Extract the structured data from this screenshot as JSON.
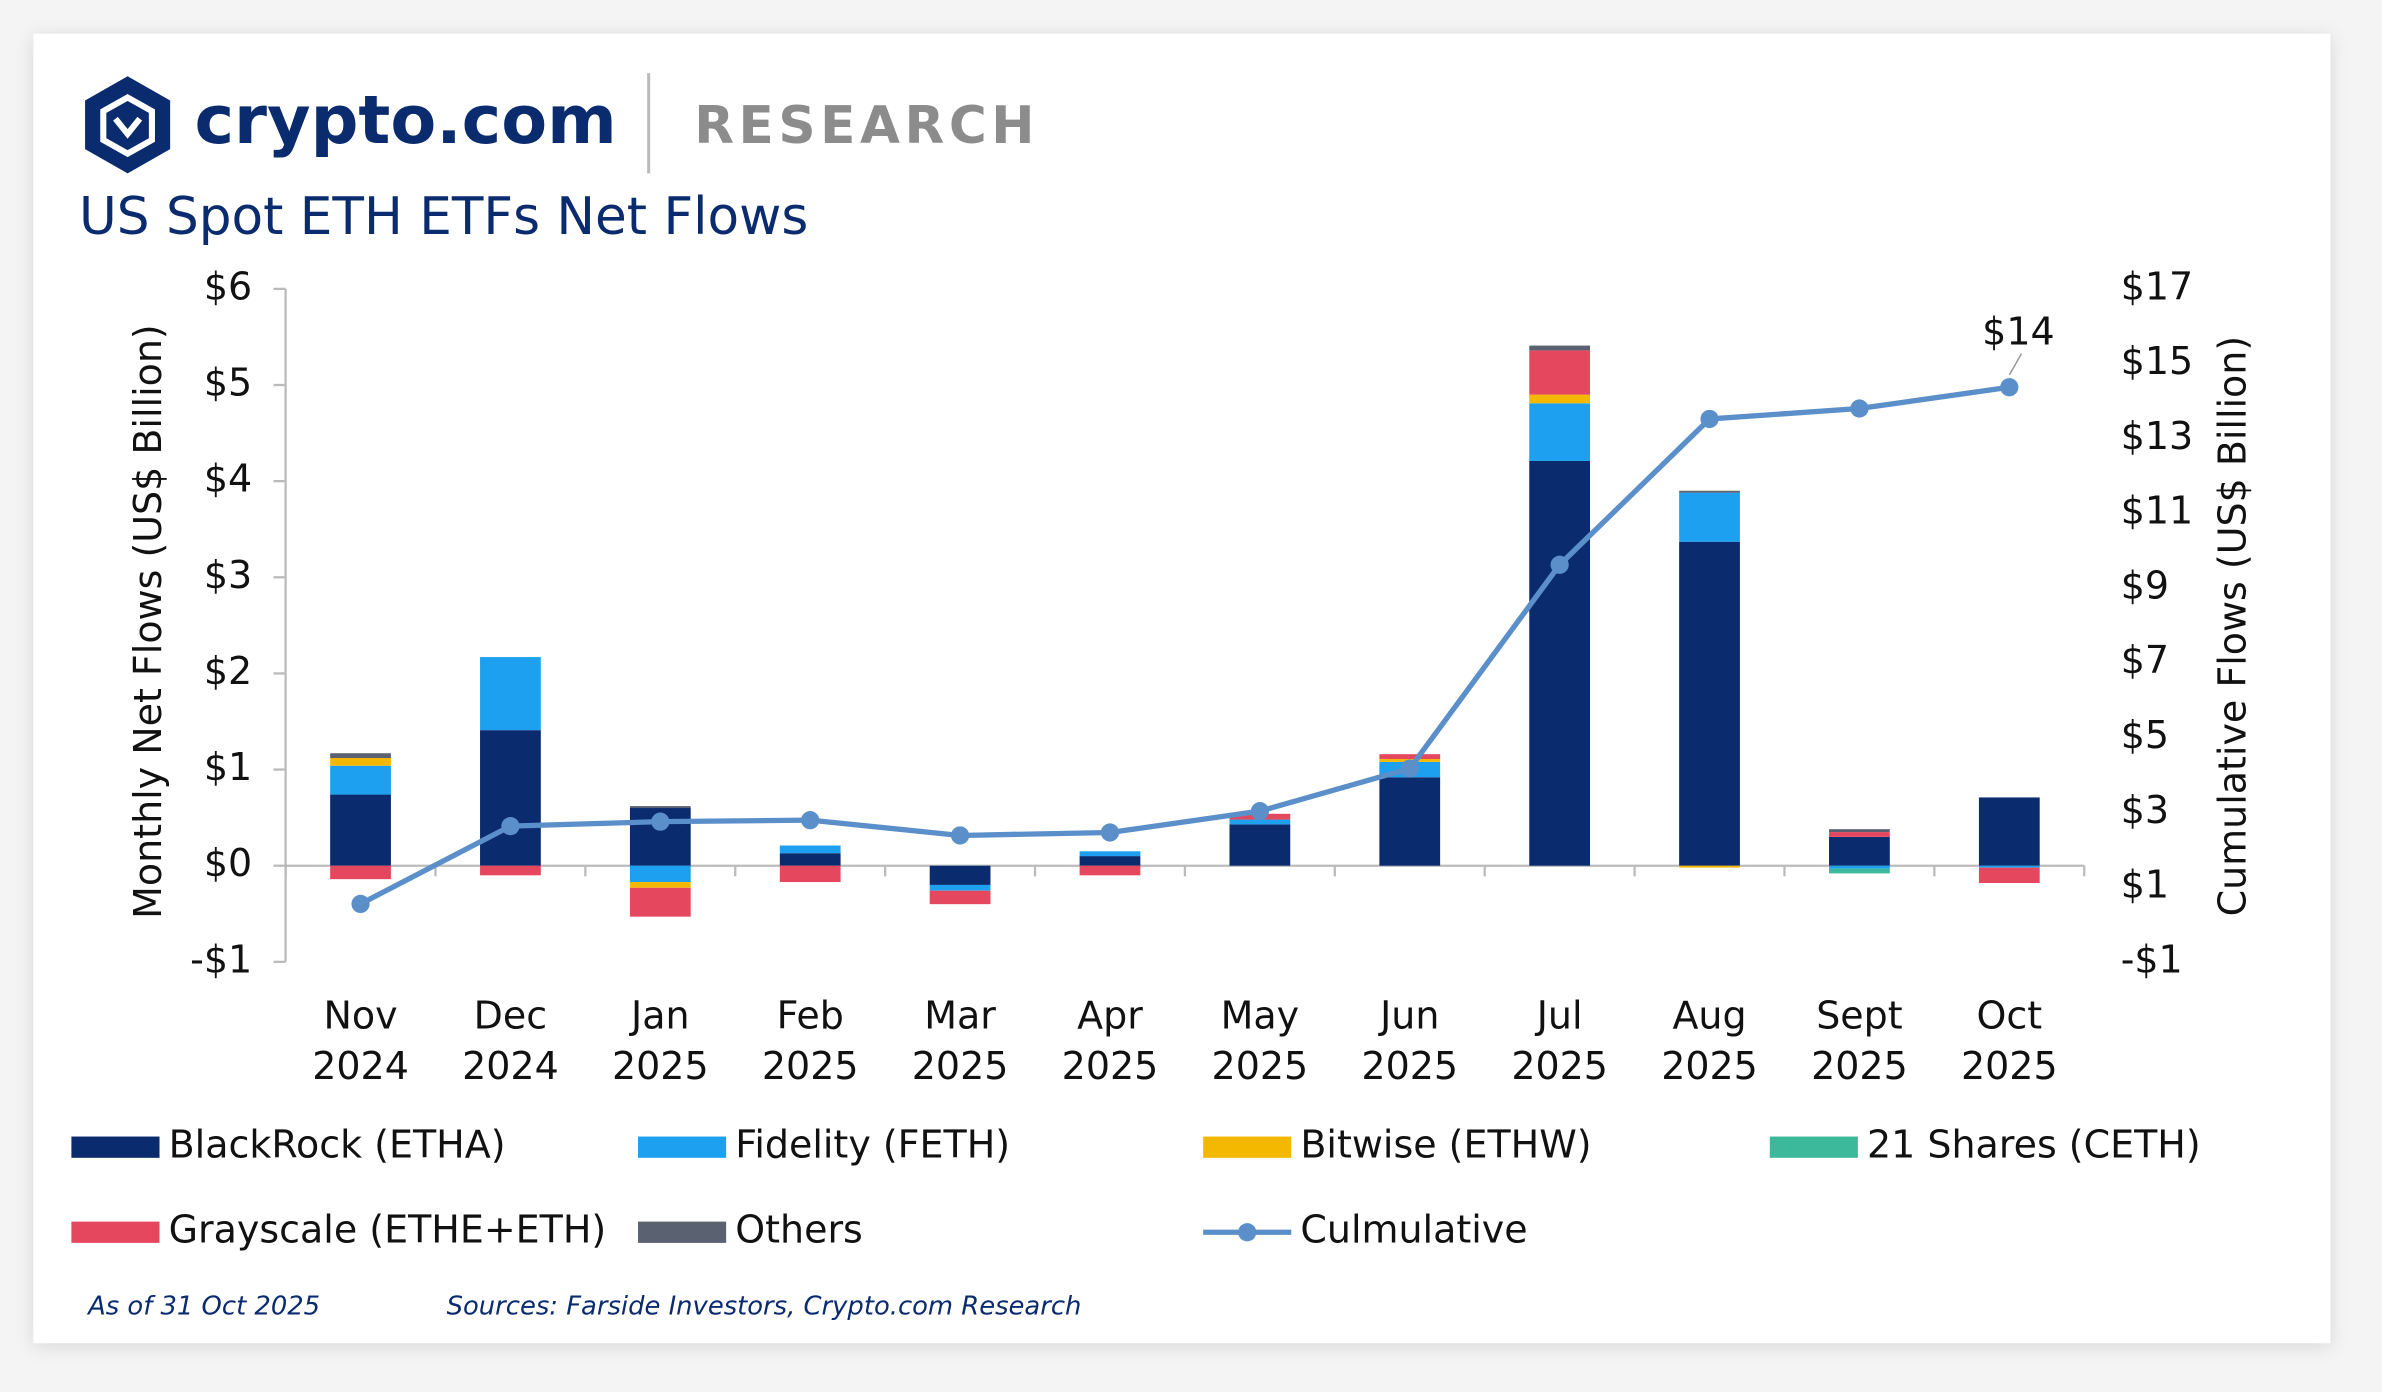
{
  "header": {
    "brand": "crypto.com",
    "section": "RESEARCH"
  },
  "chart_data": {
    "type": "bar",
    "title": "US Spot ETH ETFs Net Flows",
    "y_label": "Monthly Net Flows (US$ Billion)",
    "y2_label": "Cumulative Flows (US$ Billion)",
    "categories": [
      [
        "Nov",
        "2024"
      ],
      [
        "Dec",
        "2024"
      ],
      [
        "Jan",
        "2025"
      ],
      [
        "Feb",
        "2025"
      ],
      [
        "Mar",
        "2025"
      ],
      [
        "Apr",
        "2025"
      ],
      [
        "May",
        "2025"
      ],
      [
        "Jun",
        "2025"
      ],
      [
        "Jul",
        "2025"
      ],
      [
        "Aug",
        "2025"
      ],
      [
        "Sept",
        "2025"
      ],
      [
        "Oct",
        "2025"
      ]
    ],
    "ylim": [
      -1,
      6
    ],
    "yticks": [
      {
        "value": -1,
        "label": "-$1"
      },
      {
        "value": 0,
        "label": "$0"
      },
      {
        "value": 1,
        "label": "$1"
      },
      {
        "value": 2,
        "label": "$2"
      },
      {
        "value": 3,
        "label": "$3"
      },
      {
        "value": 4,
        "label": "$4"
      },
      {
        "value": 5,
        "label": "$5"
      },
      {
        "value": 6,
        "label": "$6"
      }
    ],
    "y2lim": [
      -1,
      17
    ],
    "y2ticks": [
      {
        "value": -1,
        "label": "-$1"
      },
      {
        "value": 1,
        "label": "$1"
      },
      {
        "value": 3,
        "label": "$3"
      },
      {
        "value": 5,
        "label": "$5"
      },
      {
        "value": 7,
        "label": "$7"
      },
      {
        "value": 9,
        "label": "$9"
      },
      {
        "value": 11,
        "label": "$11"
      },
      {
        "value": 13,
        "label": "$13"
      },
      {
        "value": 15,
        "label": "$15"
      },
      {
        "value": 17,
        "label": "$17"
      }
    ],
    "series": [
      {
        "name": "BlackRock (ETHA)",
        "color": "#0b2b6f",
        "values": [
          0.74,
          1.41,
          0.6,
          0.13,
          -0.2,
          0.1,
          0.43,
          0.92,
          4.21,
          3.37,
          0.3,
          0.71
        ]
      },
      {
        "name": "Fidelity (FETH)",
        "color": "#1ea0f0",
        "values": [
          0.3,
          0.76,
          -0.17,
          0.08,
          -0.06,
          0.05,
          0.05,
          0.16,
          0.6,
          0.51,
          -0.03,
          -0.02
        ]
      },
      {
        "name": "Bitwise (ETHW)",
        "color": "#f5b800",
        "values": [
          0.08,
          0,
          -0.06,
          0,
          0,
          0,
          0,
          0.03,
          0.09,
          -0.02,
          0,
          0
        ]
      },
      {
        "name": "21 Shares (CETH)",
        "color": "#3cb89a",
        "values": [
          0,
          0,
          0,
          0,
          0,
          0,
          0,
          0,
          0,
          0,
          -0.05,
          0
        ]
      },
      {
        "name": "Grayscale (ETHE+ETH)",
        "color": "#e5485e",
        "values": [
          -0.14,
          -0.1,
          -0.3,
          -0.17,
          -0.14,
          -0.1,
          0.06,
          0.05,
          0.46,
          0,
          0.05,
          -0.16
        ]
      },
      {
        "name": "Others",
        "color": "#5a6170",
        "values": [
          0.05,
          0,
          0.02,
          0,
          0,
          0,
          0,
          0,
          0.05,
          0.02,
          0.03,
          0
        ]
      },
      {
        "name": "Culmulative",
        "color": "#5b8fc9",
        "type": "line",
        "axis": "y2",
        "values": [
          0.55,
          2.63,
          2.75,
          2.79,
          2.38,
          2.46,
          3.03,
          4.17,
          9.62,
          13.52,
          13.8,
          14.37
        ],
        "value_labels": [
          null,
          null,
          null,
          null,
          null,
          null,
          null,
          null,
          null,
          null,
          null,
          "$14"
        ]
      }
    ],
    "notes": [
      "As of 31 Oct 2025",
      "Sources: Farside Investors, Crypto.com Research"
    ]
  }
}
